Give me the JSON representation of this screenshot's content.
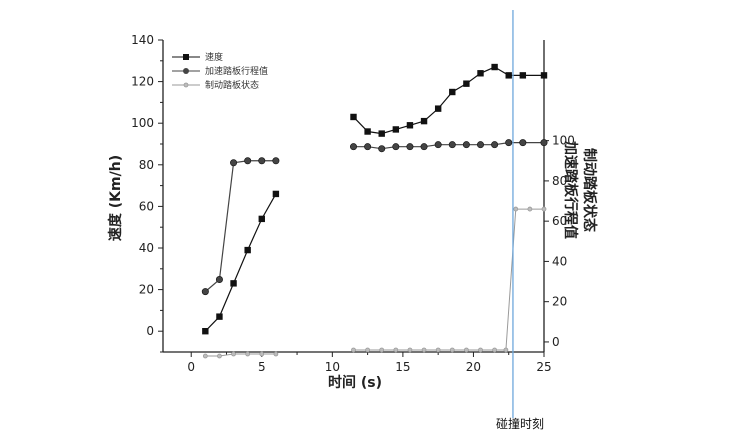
{
  "chart_data": {
    "type": "line",
    "xlabel": "时间 (s)",
    "ylabel_left": "速度 (Km/h)",
    "ylabel_right_lines": [
      "加速踏板行程值",
      "制动踏板状态"
    ],
    "xlim": [
      -2,
      25
    ],
    "ylim_left": [
      -10,
      140
    ],
    "ylim_right": [
      -5,
      150
    ],
    "x_ticks": [
      0,
      5,
      10,
      15,
      20,
      25
    ],
    "y_ticks_left": [
      0,
      20,
      40,
      60,
      80,
      100,
      120,
      140
    ],
    "y_ticks_right": [
      0,
      20,
      40,
      60,
      80,
      100
    ],
    "legend_position": "top-left",
    "series": [
      {
        "name": "速度",
        "axis": "left",
        "marker": "square",
        "color": "#111111",
        "segments": [
          {
            "x": [
              1,
              2,
              3,
              4,
              5,
              6
            ],
            "y": [
              0,
              7,
              23,
              39,
              54,
              66
            ]
          },
          {
            "x": [
              11.5,
              12.5,
              13.5,
              14.5,
              15.5,
              16.5,
              17.5,
              18.5,
              19.5,
              20.5,
              21.5,
              22.5,
              23.5,
              25
            ],
            "y": [
              103,
              96,
              95,
              97,
              99,
              101,
              107,
              115,
              119,
              124,
              127,
              123,
              123,
              123
            ]
          }
        ]
      },
      {
        "name": "加速踏板行程值",
        "axis": "right",
        "marker": "circle",
        "color": "#444444",
        "segments": [
          {
            "x": [
              1,
              2,
              3,
              4,
              5,
              6
            ],
            "y": [
              25,
              31,
              89,
              90,
              90,
              90
            ]
          },
          {
            "x": [
              11.5,
              12.5,
              13.5,
              14.5,
              15.5,
              16.5,
              17.5,
              18.5,
              19.5,
              20.5,
              21.5,
              22.5,
              23.5,
              25
            ],
            "y": [
              97,
              97,
              96,
              97,
              97,
              97,
              98,
              98,
              98,
              98,
              98,
              99,
              99,
              99
            ]
          }
        ]
      },
      {
        "name": "制动踏板状态",
        "axis": "right",
        "marker": "small-circle",
        "color": "#9a9a9a",
        "segments": [
          {
            "x": [
              1,
              2,
              3,
              4,
              5,
              6
            ],
            "y": [
              -7,
              -7,
              -6,
              -6,
              -6,
              -6
            ]
          },
          {
            "x": [
              11.5,
              12.5,
              13.5,
              14.5,
              15.5,
              16.5,
              17.5,
              18.5,
              19.5,
              20.5,
              21.5,
              22.3,
              23,
              24,
              25
            ],
            "y": [
              -4,
              -4,
              -4,
              -4,
              -4,
              -4,
              -4,
              -4,
              -4,
              -4,
              -4,
              -4,
              66,
              66,
              66
            ]
          }
        ]
      }
    ],
    "annotations": [
      {
        "type": "vertical-line",
        "x": 22.8,
        "color": "#6fa8dc",
        "label": "碰撞时刻"
      }
    ]
  }
}
